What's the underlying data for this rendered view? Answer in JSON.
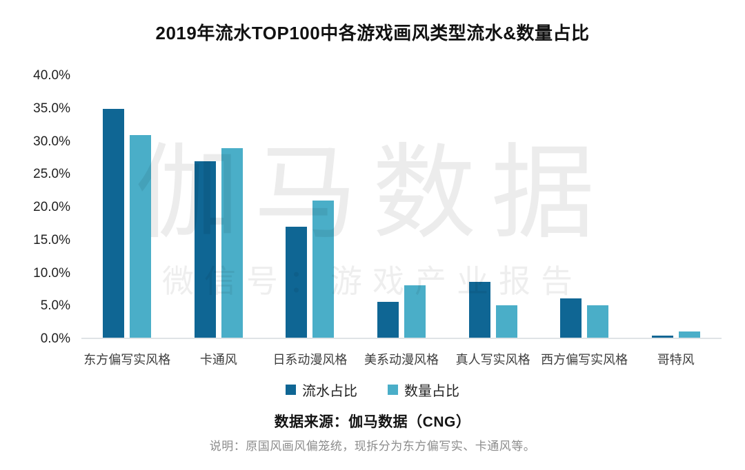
{
  "watermark": {
    "line1": "伽马数据",
    "line2": "微信号：游戏产业报告"
  },
  "chart_data": {
    "type": "bar",
    "title": "2019年流水TOP100中各游戏画风类型流水&数量占比",
    "categories": [
      "东方偏写实风格",
      "卡通风",
      "日系动漫风格",
      "美系动漫风格",
      "真人写实风格",
      "西方偏写实风格",
      "哥特风"
    ],
    "series": [
      {
        "key": "revenue-share",
        "name": "流水占比",
        "color": "#0f6694",
        "values": [
          35,
          27,
          17,
          5.5,
          8.5,
          6,
          0.3
        ]
      },
      {
        "key": "count-share",
        "name": "数量占比",
        "color": "#4aaec8",
        "values": [
          31,
          29,
          21,
          8,
          5,
          5,
          1
        ]
      }
    ],
    "xlabel": "",
    "ylabel": "",
    "ylim": [
      0,
      40
    ],
    "yticks": [
      "40.0%",
      "35.0%",
      "30.0%",
      "25.0%",
      "20.0%",
      "15.0%",
      "10.0%",
      "5.0%",
      "0.0%"
    ],
    "grid": false,
    "legend_position": "bottom"
  },
  "footer": {
    "source": "数据来源：伽马数据（CNG）",
    "note": "说明：原国风画风偏笼统，现拆分为东方偏写实、卡通风等。"
  }
}
